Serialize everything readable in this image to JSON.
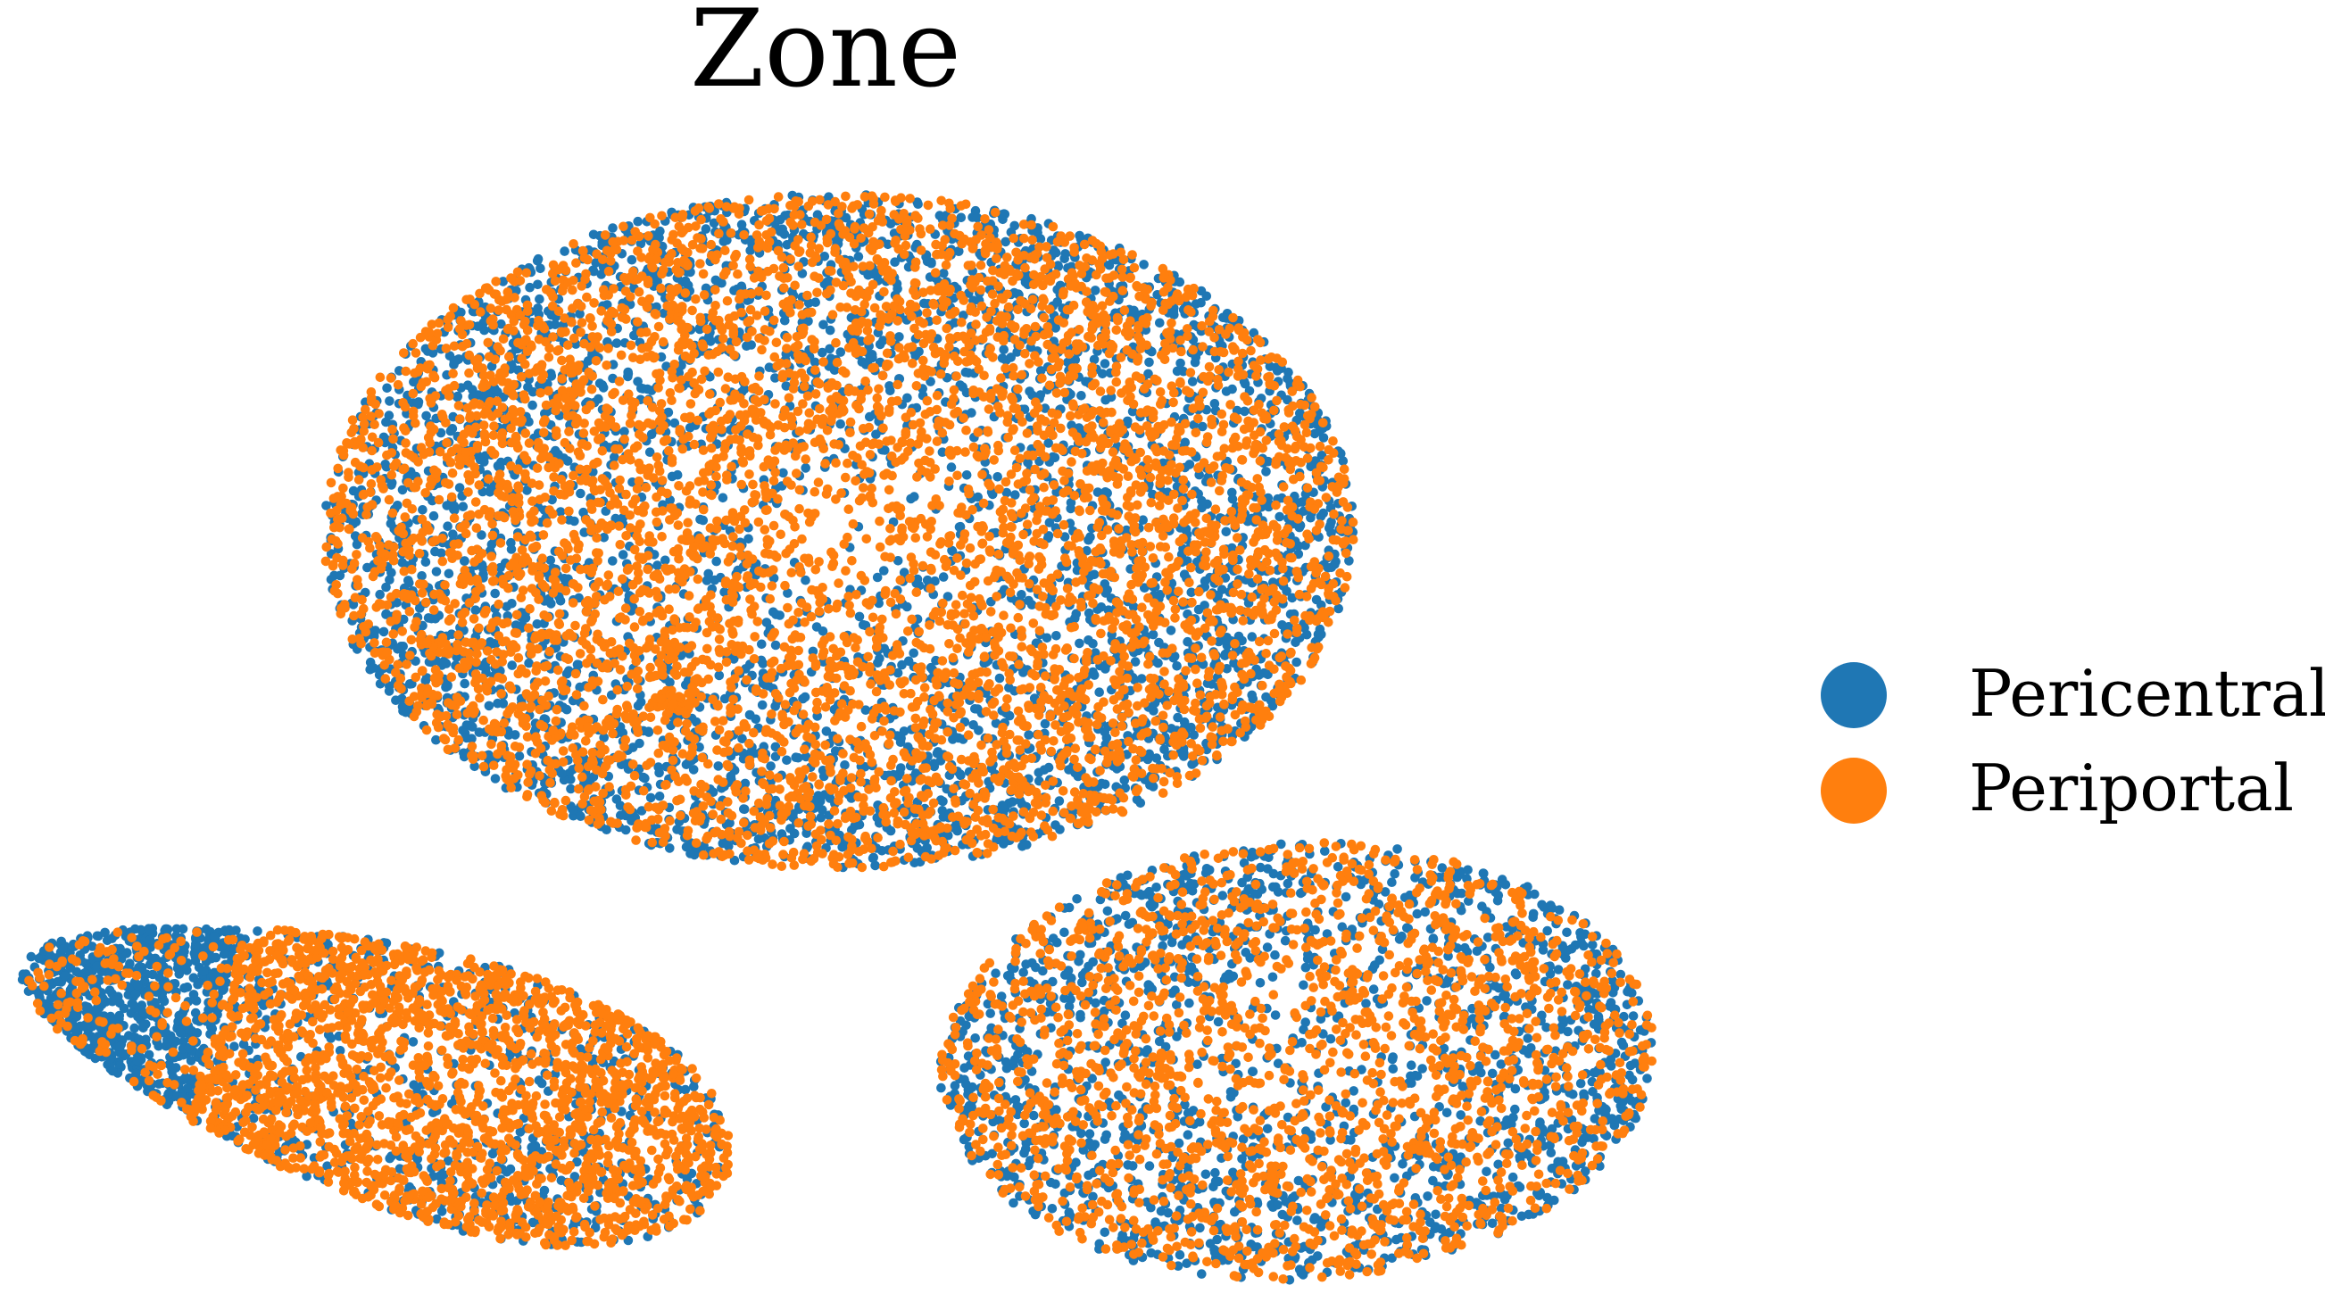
{
  "chart_data": {
    "type": "scatter",
    "title": "Zone",
    "xlabel": "",
    "ylabel": "",
    "grid": false,
    "axes_visible": false,
    "legend_placement": "right",
    "series": [
      {
        "name": "Pericentral",
        "color": "#1f77b4"
      },
      {
        "name": "Periportal",
        "color": "#ff7f0e"
      }
    ],
    "clusters": [
      {
        "id": "top",
        "center": [
          0.0,
          4.0
        ],
        "approx_points": 9000,
        "pericentral_fraction": 0.38
      },
      {
        "id": "bottom-left",
        "center": [
          -3.5,
          -2.5
        ],
        "approx_points": 3500,
        "pericentral_fraction": 0.22
      },
      {
        "id": "bottom-right",
        "center": [
          3.7,
          -2.7
        ],
        "approx_points": 3500,
        "pericentral_fraction": 0.42
      }
    ]
  }
}
